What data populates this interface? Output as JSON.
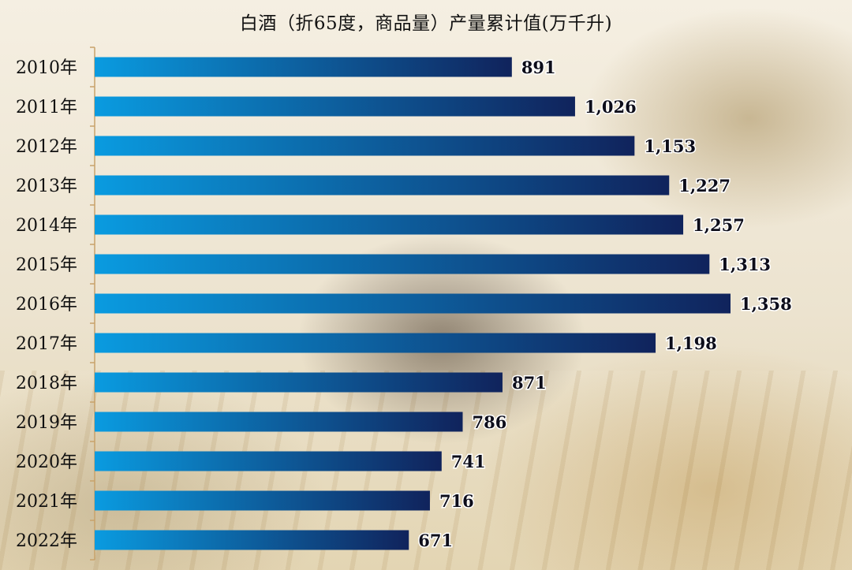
{
  "chart_data": {
    "type": "bar",
    "orientation": "horizontal",
    "title": "白酒（折65度，商品量）产量累计值(万千升)",
    "categories": [
      "2010年",
      "2011年",
      "2012年",
      "2013年",
      "2014年",
      "2015年",
      "2016年",
      "2017年",
      "2018年",
      "2019年",
      "2020年",
      "2021年",
      "2022年"
    ],
    "values": [
      891,
      1026,
      1153,
      1227,
      1257,
      1313,
      1358,
      1198,
      871,
      786,
      741,
      716,
      671
    ],
    "value_labels": [
      "891",
      "1,026",
      "1,153",
      "1,227",
      "1,257",
      "1,313",
      "1,358",
      "1,198",
      "871",
      "786",
      "741",
      "716",
      "671"
    ],
    "xlim": [
      0,
      1358
    ],
    "grid": false,
    "legend": "none",
    "colors": {
      "bar_start": "#0a9be0",
      "bar_end": "#10235c",
      "axis": "#c8a26a"
    }
  }
}
